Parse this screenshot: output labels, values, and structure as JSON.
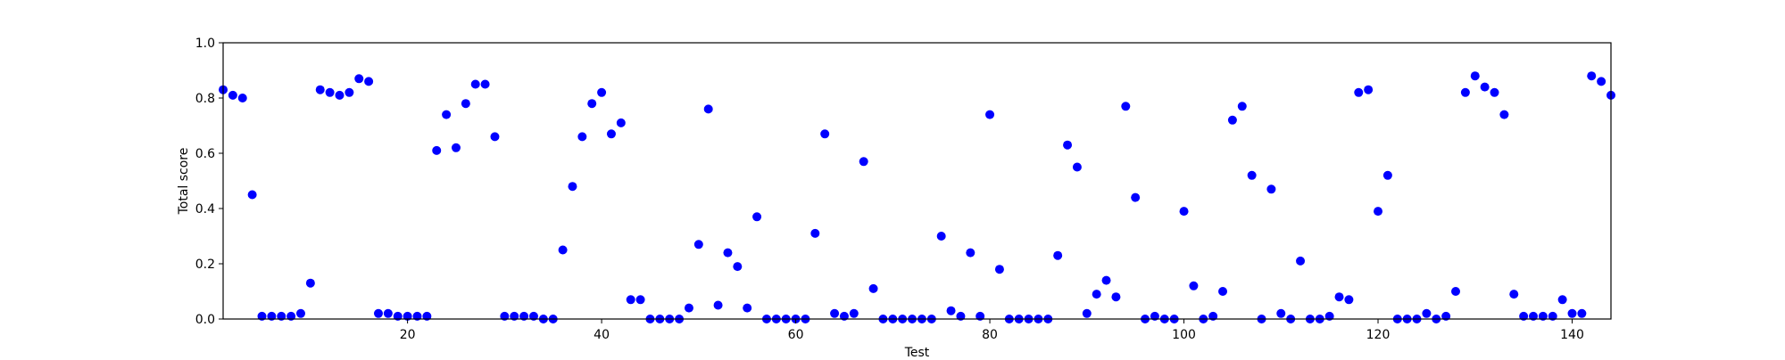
{
  "chart_data": {
    "type": "scatter",
    "title": "",
    "xlabel": "Test",
    "ylabel": "Total score",
    "xlim": [
      1,
      144
    ],
    "ylim": [
      0.0,
      1.0
    ],
    "x_ticks": [
      20,
      40,
      60,
      80,
      100,
      120,
      140
    ],
    "y_ticks": [
      0.0,
      0.2,
      0.4,
      0.6,
      0.8,
      1.0
    ],
    "x_tick_labels": [
      "20",
      "40",
      "60",
      "80",
      "100",
      "120",
      "140"
    ],
    "y_tick_labels": [
      "0.0",
      "0.2",
      "0.4",
      "0.6",
      "0.8",
      "1.0"
    ],
    "grid": false,
    "legend": "none",
    "marker_color": "#0000ff",
    "series": [
      {
        "x": [
          1,
          2,
          3,
          4,
          5,
          6,
          7,
          8,
          9,
          10,
          11,
          12,
          13,
          14,
          15,
          16,
          17,
          18,
          19,
          20,
          21,
          22,
          23,
          24,
          25,
          26,
          27,
          28,
          29,
          30,
          31,
          32,
          33,
          34,
          35,
          36,
          37,
          38,
          39,
          40,
          41,
          42,
          43,
          44,
          45,
          46,
          47,
          48,
          49,
          50,
          51,
          52,
          53,
          54,
          55,
          56,
          57,
          58,
          59,
          60,
          61,
          62,
          63,
          64,
          65,
          66,
          67,
          68,
          69,
          70,
          71,
          72,
          73,
          74,
          75,
          76,
          77,
          78,
          79,
          80,
          81,
          82,
          83,
          84,
          85,
          86,
          87,
          88,
          89,
          90,
          91,
          92,
          93,
          94,
          95,
          96,
          97,
          98,
          99,
          100,
          101,
          102,
          103,
          104,
          105,
          106,
          107,
          108,
          109,
          110,
          111,
          112,
          113,
          114,
          115,
          116,
          117,
          118,
          119,
          120,
          121,
          122,
          123,
          124,
          125,
          126,
          127,
          128,
          129,
          130,
          131,
          132,
          133,
          134,
          135,
          136,
          137,
          138,
          139,
          140,
          141,
          142,
          143,
          144
        ],
        "y": [
          0.83,
          0.81,
          0.8,
          0.45,
          0.01,
          0.01,
          0.01,
          0.01,
          0.02,
          0.13,
          0.83,
          0.82,
          0.81,
          0.82,
          0.87,
          0.86,
          0.02,
          0.02,
          0.01,
          0.01,
          0.01,
          0.01,
          0.61,
          0.74,
          0.62,
          0.78,
          0.85,
          0.85,
          0.66,
          0.01,
          0.01,
          0.01,
          0.01,
          0.0,
          0.0,
          0.25,
          0.48,
          0.66,
          0.78,
          0.82,
          0.67,
          0.71,
          0.07,
          0.07,
          0.0,
          0.0,
          0.0,
          0.0,
          0.04,
          0.27,
          0.76,
          0.05,
          0.24,
          0.19,
          0.04,
          0.37,
          0.0,
          0.0,
          0.0,
          0.0,
          0.0,
          0.31,
          0.67,
          0.02,
          0.01,
          0.02,
          0.57,
          0.11,
          0.0,
          0.0,
          0.0,
          0.0,
          0.0,
          0.0,
          0.3,
          0.03,
          0.01,
          0.24,
          0.01,
          0.74,
          0.18,
          0.0,
          0.0,
          0.0,
          0.0,
          0.0,
          0.23,
          0.63,
          0.55,
          0.02,
          0.09,
          0.14,
          0.08,
          0.77,
          0.44,
          0.0,
          0.01,
          0.0,
          0.0,
          0.39,
          0.12,
          0.0,
          0.01,
          0.1,
          0.72,
          0.77,
          0.52,
          0.0,
          0.47,
          0.02,
          0.0,
          0.21,
          0.0,
          0.0,
          0.01,
          0.08,
          0.07,
          0.82,
          0.83,
          0.39,
          0.52,
          0.0,
          0.0,
          0.0,
          0.02,
          0.0,
          0.01,
          0.1,
          0.82,
          0.88,
          0.84,
          0.82,
          0.74,
          0.09,
          0.01,
          0.01,
          0.01,
          0.01,
          0.07,
          0.02,
          0.02,
          0.88,
          0.86,
          0.81
        ]
      }
    ]
  }
}
